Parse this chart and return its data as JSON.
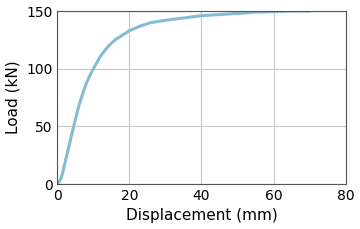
{
  "title": "",
  "xlabel": "Displacement (mm)",
  "ylabel": "Load (kN)",
  "xlim": [
    0,
    80
  ],
  "ylim": [
    0,
    150
  ],
  "xticks": [
    0,
    20,
    40,
    60,
    80
  ],
  "yticks": [
    0,
    50,
    100,
    150
  ],
  "line_color": "#85bbd4",
  "line_width": 2.2,
  "grid": true,
  "grid_color": "#c8c8c8",
  "grid_linewidth": 0.8,
  "background_color": "#ffffff",
  "curve_x": [
    0,
    0.5,
    1,
    1.5,
    2,
    3,
    4,
    5,
    6,
    7,
    8,
    9,
    10,
    12,
    14,
    16,
    18,
    20,
    23,
    26,
    30,
    35,
    40,
    45,
    50,
    55,
    60,
    65,
    70
  ],
  "curve_y": [
    0,
    2,
    5,
    10,
    17,
    30,
    43,
    56,
    68,
    78,
    87,
    94,
    100,
    111,
    119,
    125,
    129,
    133,
    137,
    140,
    142,
    144,
    146,
    147,
    148,
    149,
    149.5,
    150,
    150
  ],
  "xlabel_fontsize": 11,
  "ylabel_fontsize": 11,
  "tick_fontsize": 10
}
